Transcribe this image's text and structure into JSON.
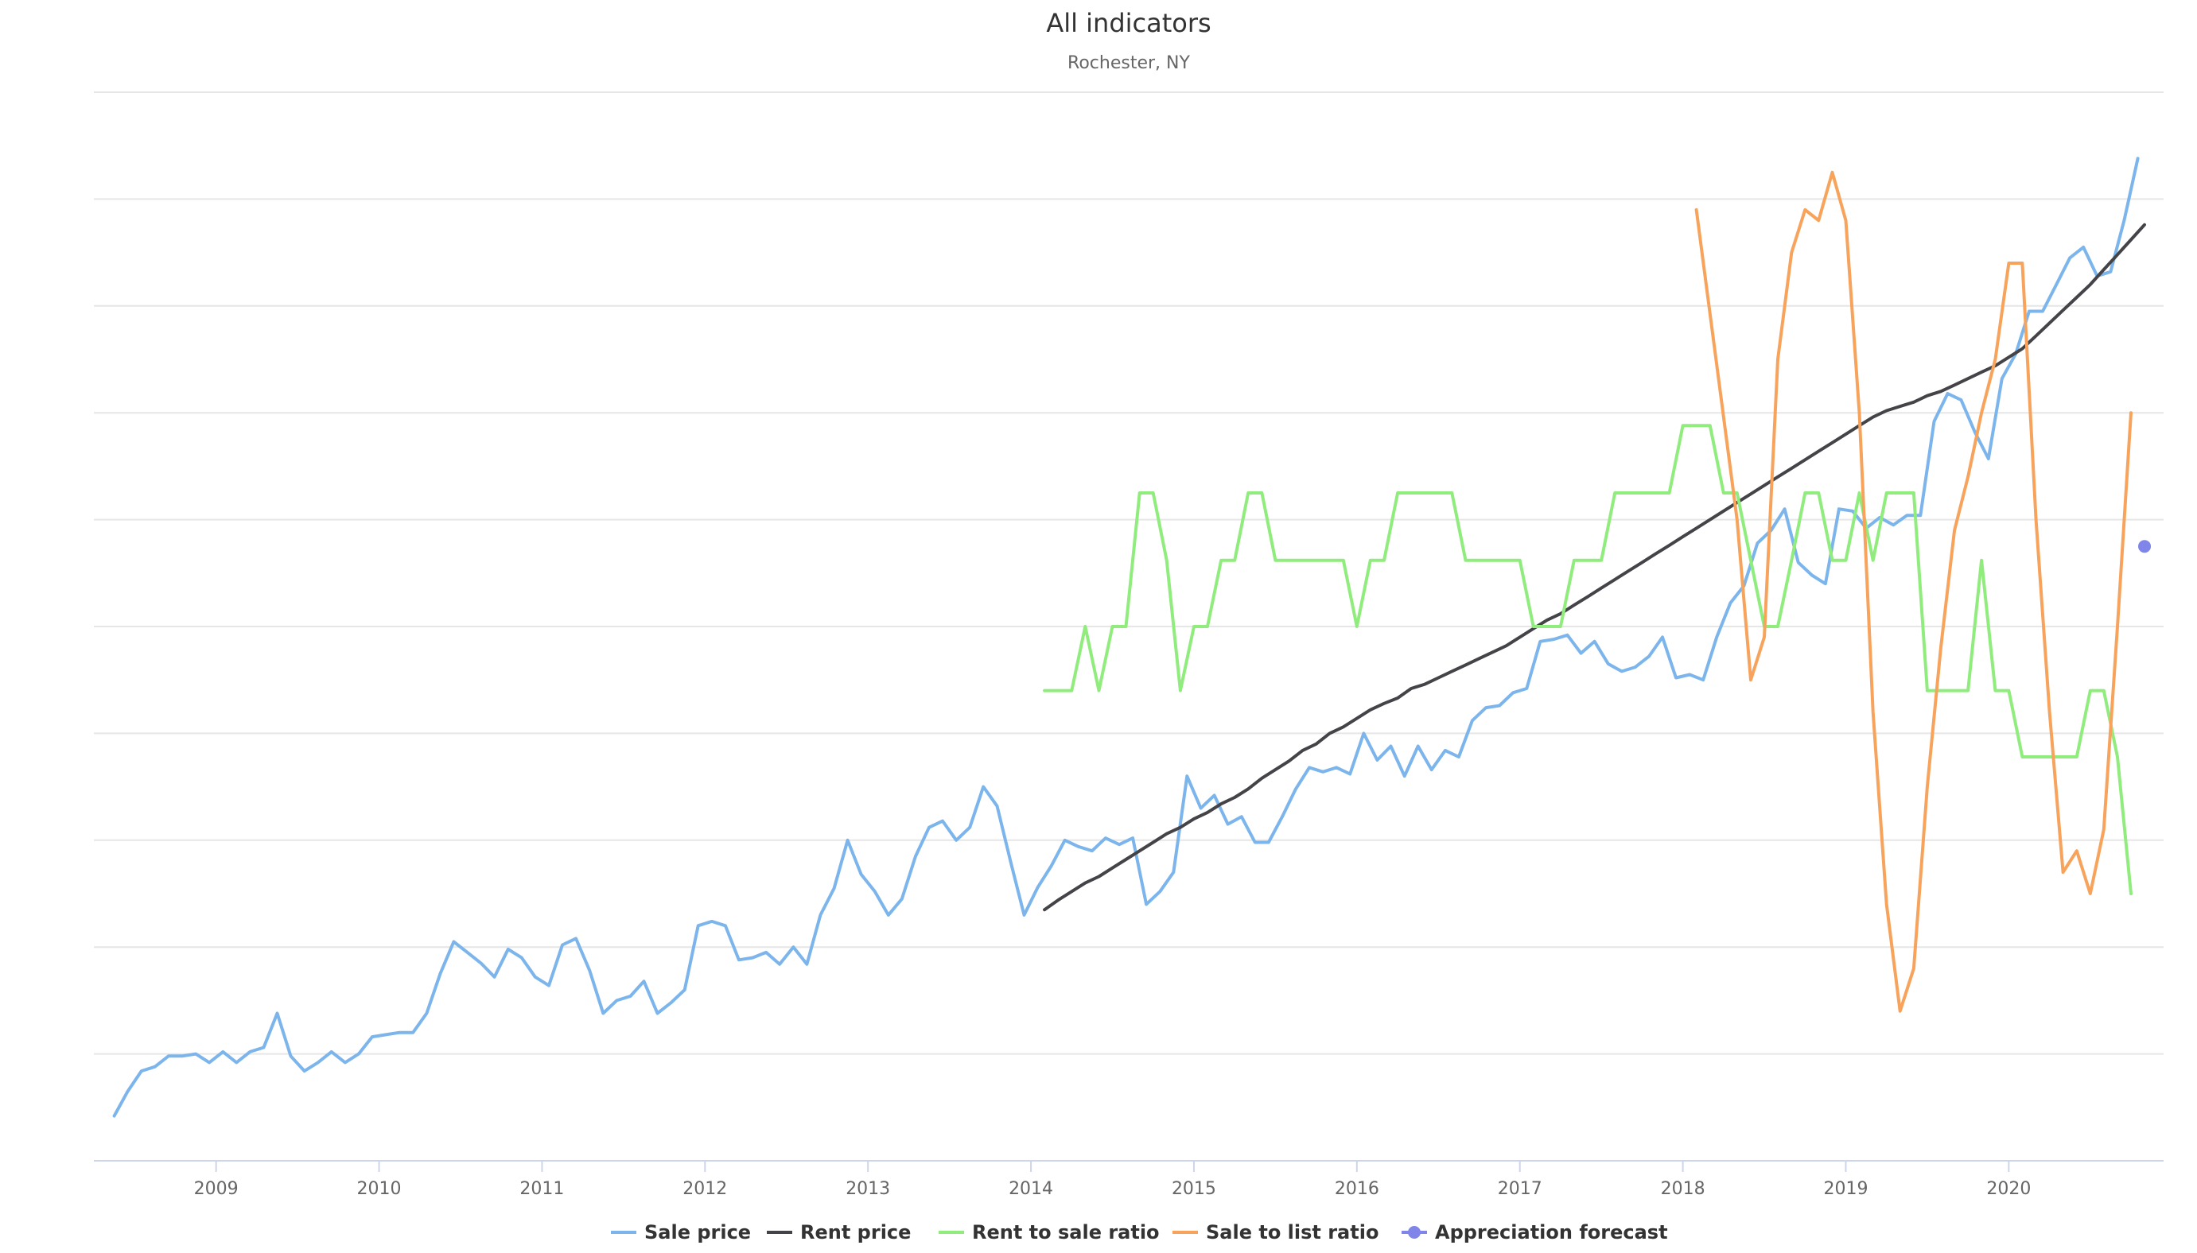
{
  "chart_data": {
    "type": "line",
    "title": "All indicators",
    "subtitle": "Rochester, NY",
    "x_range": [
      2008.25,
      2020.95
    ],
    "x_ticks": [
      {
        "value": 2009,
        "label": "2009"
      },
      {
        "value": 2010,
        "label": "2010"
      },
      {
        "value": 2011,
        "label": "2011"
      },
      {
        "value": 2012,
        "label": "2012"
      },
      {
        "value": 2013,
        "label": "2013"
      },
      {
        "value": 2014,
        "label": "2014"
      },
      {
        "value": 2015,
        "label": "2015"
      },
      {
        "value": 2016,
        "label": "2016"
      },
      {
        "value": 2017,
        "label": "2017"
      },
      {
        "value": 2018,
        "label": "2018"
      },
      {
        "value": 2019,
        "label": "2019"
      },
      {
        "value": 2020,
        "label": "2020"
      }
    ],
    "y_range": [
      0,
      10
    ],
    "y_gridlines": 10,
    "grid": true,
    "legend_position": "bottom-center",
    "series": [
      {
        "name": "Sale price",
        "color": "#7cb5ec",
        "x": [
          2008.375,
          2008.458,
          2008.542,
          2008.625,
          2008.708,
          2008.792,
          2008.875,
          2008.958,
          2009.042,
          2009.125,
          2009.208,
          2009.292,
          2009.375,
          2009.458,
          2009.542,
          2009.625,
          2009.708,
          2009.792,
          2009.875,
          2009.958,
          2010.042,
          2010.125,
          2010.208,
          2010.292,
          2010.375,
          2010.458,
          2010.542,
          2010.625,
          2010.708,
          2010.792,
          2010.875,
          2010.958,
          2011.042,
          2011.125,
          2011.208,
          2011.292,
          2011.375,
          2011.458,
          2011.542,
          2011.625,
          2011.708,
          2011.792,
          2011.875,
          2011.958,
          2012.042,
          2012.125,
          2012.208,
          2012.292,
          2012.375,
          2012.458,
          2012.542,
          2012.625,
          2012.708,
          2012.792,
          2012.875,
          2012.958,
          2013.042,
          2013.125,
          2013.208,
          2013.292,
          2013.375,
          2013.458,
          2013.542,
          2013.625,
          2013.708,
          2013.792,
          2013.875,
          2013.958,
          2014.042,
          2014.125,
          2014.208,
          2014.292,
          2014.375,
          2014.458,
          2014.542,
          2014.625,
          2014.708,
          2014.792,
          2014.875,
          2014.958,
          2015.042,
          2015.125,
          2015.208,
          2015.292,
          2015.375,
          2015.458,
          2015.542,
          2015.625,
          2015.708,
          2015.792,
          2015.875,
          2015.958,
          2016.042,
          2016.125,
          2016.208,
          2016.292,
          2016.375,
          2016.458,
          2016.542,
          2016.625,
          2016.708,
          2016.792,
          2016.875,
          2016.958,
          2017.042,
          2017.125,
          2017.208,
          2017.292,
          2017.375,
          2017.458,
          2017.542,
          2017.625,
          2017.708,
          2017.792,
          2017.875,
          2017.958,
          2018.042,
          2018.125,
          2018.208,
          2018.292,
          2018.375,
          2018.458,
          2018.542,
          2018.625,
          2018.708,
          2018.792,
          2018.875,
          2018.958,
          2019.042,
          2019.125,
          2019.208,
          2019.292,
          2019.375,
          2019.458,
          2019.542,
          2019.625,
          2019.708,
          2019.792,
          2019.875,
          2019.958,
          2020.042,
          2020.125,
          2020.208,
          2020.292,
          2020.375,
          2020.458,
          2020.542,
          2020.625,
          2020.708,
          2020.792
        ],
        "values": [
          0.42,
          0.65,
          0.84,
          0.88,
          0.98,
          0.98,
          1.0,
          0.92,
          1.02,
          0.92,
          1.02,
          1.06,
          1.38,
          0.98,
          0.84,
          0.92,
          1.02,
          0.92,
          1.0,
          1.16,
          1.18,
          1.2,
          1.2,
          1.38,
          1.75,
          2.05,
          1.95,
          1.85,
          1.72,
          1.98,
          1.9,
          1.72,
          1.64,
          2.02,
          2.08,
          1.78,
          1.38,
          1.5,
          1.54,
          1.68,
          1.38,
          1.48,
          1.6,
          2.2,
          2.24,
          2.2,
          1.88,
          1.9,
          1.95,
          1.84,
          2.0,
          1.84,
          2.3,
          2.55,
          3.0,
          2.68,
          2.52,
          2.3,
          2.45,
          2.85,
          3.12,
          3.18,
          3.0,
          3.12,
          3.5,
          3.32,
          2.8,
          2.3,
          2.56,
          2.76,
          3.0,
          2.94,
          2.9,
          3.02,
          2.96,
          3.02,
          2.4,
          2.52,
          2.7,
          3.6,
          3.3,
          3.42,
          3.15,
          3.22,
          2.98,
          2.98,
          3.22,
          3.48,
          3.68,
          3.64,
          3.68,
          3.62,
          4.0,
          3.75,
          3.88,
          3.6,
          3.88,
          3.66,
          3.84,
          3.78,
          4.12,
          4.24,
          4.26,
          4.38,
          4.42,
          4.86,
          4.88,
          4.92,
          4.75,
          4.86,
          4.65,
          4.58,
          4.62,
          4.72,
          4.9,
          4.52,
          4.55,
          4.5,
          4.9,
          5.22,
          5.38,
          5.78,
          5.9,
          6.1,
          5.6,
          5.48,
          5.4,
          6.1,
          6.08,
          5.92,
          6.02,
          5.95,
          6.04,
          6.04,
          6.92,
          7.18,
          7.12,
          6.82,
          6.57,
          7.32,
          7.55,
          7.95,
          7.95,
          8.2,
          8.45,
          8.55,
          8.28,
          8.32,
          8.8,
          9.38
        ]
      },
      {
        "name": "Rent price",
        "color": "#434348",
        "x": [
          2014.083,
          2014.167,
          2014.25,
          2014.333,
          2014.417,
          2014.5,
          2014.583,
          2014.667,
          2014.75,
          2014.833,
          2014.917,
          2015.0,
          2015.083,
          2015.167,
          2015.25,
          2015.333,
          2015.417,
          2015.5,
          2015.583,
          2015.667,
          2015.75,
          2015.833,
          2015.917,
          2016.0,
          2016.083,
          2016.167,
          2016.25,
          2016.333,
          2016.417,
          2016.5,
          2016.583,
          2016.667,
          2016.75,
          2016.833,
          2016.917,
          2017.0,
          2017.083,
          2017.167,
          2017.25,
          2017.333,
          2017.417,
          2017.5,
          2017.583,
          2017.667,
          2017.75,
          2017.833,
          2017.917,
          2018.0,
          2018.083,
          2018.167,
          2018.25,
          2018.333,
          2018.417,
          2018.5,
          2018.583,
          2018.667,
          2018.75,
          2018.833,
          2018.917,
          2019.0,
          2019.083,
          2019.167,
          2019.25,
          2019.333,
          2019.417,
          2019.5,
          2019.583,
          2019.667,
          2019.75,
          2019.833,
          2019.917,
          2020.0,
          2020.083,
          2020.167,
          2020.25,
          2020.333,
          2020.417,
          2020.5,
          2020.583,
          2020.667,
          2020.75,
          2020.833
        ],
        "values": [
          2.35,
          2.44,
          2.52,
          2.6,
          2.66,
          2.74,
          2.82,
          2.9,
          2.98,
          3.06,
          3.12,
          3.2,
          3.26,
          3.34,
          3.4,
          3.48,
          3.58,
          3.66,
          3.74,
          3.84,
          3.9,
          4.0,
          4.06,
          4.14,
          4.22,
          4.28,
          4.33,
          4.42,
          4.46,
          4.52,
          4.58,
          4.64,
          4.7,
          4.76,
          4.82,
          4.9,
          4.98,
          5.06,
          5.12,
          5.2,
          5.28,
          5.36,
          5.44,
          5.52,
          5.6,
          5.68,
          5.76,
          5.84,
          5.92,
          6.0,
          6.08,
          6.16,
          6.24,
          6.32,
          6.4,
          6.48,
          6.56,
          6.64,
          6.72,
          6.8,
          6.88,
          6.96,
          7.02,
          7.06,
          7.1,
          7.16,
          7.2,
          7.26,
          7.32,
          7.38,
          7.44,
          7.52,
          7.6,
          7.72,
          7.84,
          7.96,
          8.08,
          8.2,
          8.34,
          8.48,
          8.62,
          8.76
        ]
      },
      {
        "name": "Rent to sale ratio",
        "color": "#90ed7d",
        "x": [
          2014.083,
          2014.25,
          2014.333,
          2014.417,
          2014.5,
          2014.583,
          2014.667,
          2014.75,
          2014.833,
          2014.917,
          2015.0,
          2015.083,
          2015.167,
          2015.25,
          2015.333,
          2015.417,
          2015.5,
          2015.583,
          2015.917,
          2016.0,
          2016.083,
          2016.167,
          2016.25,
          2016.583,
          2016.667,
          2016.75,
          2016.917,
          2017.0,
          2017.083,
          2017.25,
          2017.333,
          2017.417,
          2017.5,
          2017.583,
          2017.667,
          2017.917,
          2018.0,
          2018.083,
          2018.167,
          2018.25,
          2018.333,
          2018.417,
          2018.5,
          2018.583,
          2018.667,
          2018.75,
          2018.833,
          2018.917,
          2019.0,
          2019.083,
          2019.167,
          2019.25,
          2019.333,
          2019.417,
          2019.5,
          2019.583,
          2019.75,
          2019.833,
          2019.917,
          2020.0,
          2020.083,
          2020.417,
          2020.5,
          2020.583,
          2020.667,
          2020.75
        ],
        "values": [
          4.4,
          4.4,
          5.0,
          4.4,
          5.0,
          5.0,
          6.25,
          6.25,
          5.62,
          4.4,
          5.0,
          5.0,
          5.62,
          5.62,
          6.25,
          6.25,
          5.62,
          5.62,
          5.62,
          5.0,
          5.62,
          5.62,
          6.25,
          6.25,
          5.62,
          5.62,
          5.62,
          5.62,
          5.0,
          5.0,
          5.62,
          5.62,
          5.62,
          6.25,
          6.25,
          6.25,
          6.88,
          6.88,
          6.88,
          6.25,
          6.25,
          5.62,
          5.0,
          5.0,
          5.62,
          6.25,
          6.25,
          5.62,
          5.62,
          6.25,
          5.62,
          6.25,
          6.25,
          6.25,
          4.4,
          4.4,
          4.4,
          5.62,
          4.4,
          4.4,
          3.78,
          3.78,
          4.4,
          4.4,
          3.78,
          2.5
        ]
      },
      {
        "name": "Sale to list ratio",
        "color": "#f7a35c",
        "x": [
          2018.083,
          2018.333,
          2018.417,
          2018.5,
          2018.583,
          2018.667,
          2018.75,
          2018.833,
          2018.917,
          2019.0,
          2019.083,
          2019.167,
          2019.25,
          2019.333,
          2019.417,
          2019.5,
          2019.583,
          2019.667,
          2019.75,
          2019.833,
          2019.917,
          2020.0,
          2020.083,
          2020.167,
          2020.25,
          2020.333,
          2020.417,
          2020.5,
          2020.583,
          2020.667,
          2020.75
        ],
        "values": [
          8.9,
          6.0,
          4.5,
          4.9,
          7.5,
          8.5,
          8.9,
          8.8,
          9.25,
          8.8,
          7.0,
          4.2,
          2.4,
          1.4,
          1.8,
          3.5,
          4.8,
          5.9,
          6.4,
          7.0,
          7.5,
          8.4,
          8.4,
          6.0,
          4.2,
          2.7,
          2.9,
          2.5,
          3.1,
          5.0,
          7.0
        ]
      },
      {
        "name": "Appreciation forecast",
        "color": "#8085e9",
        "type": "scatter",
        "x": [
          2020.833
        ],
        "values": [
          5.75
        ]
      }
    ]
  }
}
